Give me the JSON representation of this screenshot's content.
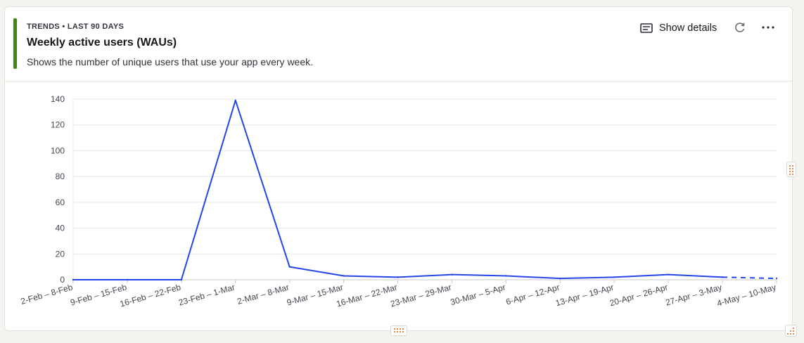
{
  "header": {
    "eyebrow": "TRENDS • LAST 90 DAYS",
    "title": "Weekly active users (WAUs)",
    "subtitle": "Shows the number of unique users that use your app every week."
  },
  "toolbar": {
    "show_details_label": "Show details",
    "details_icon": "details-icon",
    "refresh_icon": "refresh-icon",
    "more_icon": "more-icon"
  },
  "colors": {
    "accent": "#3b8a12",
    "line": "#2446e8"
  },
  "chart_data": {
    "type": "line",
    "title": "",
    "xlabel": "",
    "ylabel": "",
    "ylim": [
      0,
      140
    ],
    "yticks": [
      0,
      20,
      40,
      60,
      80,
      100,
      120,
      140
    ],
    "grid": true,
    "categories": [
      "2-Feb – 8-Feb",
      "9-Feb – 15-Feb",
      "16-Feb – 22-Feb",
      "23-Feb – 1-Mar",
      "2-Mar – 8-Mar",
      "9-Mar – 15-Mar",
      "16-Mar – 22-Mar",
      "23-Mar – 29-Mar",
      "30-Mar – 5-Apr",
      "6-Apr – 12-Apr",
      "13-Apr – 19-Apr",
      "20-Apr – 26-Apr",
      "27-Apr – 3-May",
      "4-May – 10-May"
    ],
    "series": [
      {
        "values": [
          0,
          0,
          0,
          139,
          10,
          3,
          2,
          4,
          3,
          1,
          2,
          4,
          2,
          1
        ],
        "dashed_last_segment": true
      }
    ]
  }
}
